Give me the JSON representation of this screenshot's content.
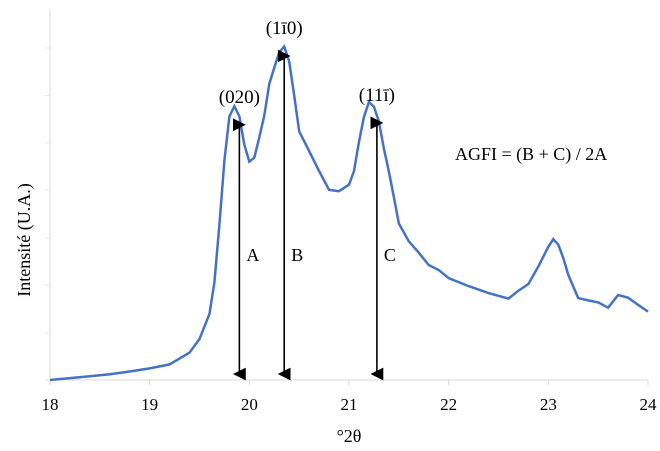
{
  "chart_data": {
    "type": "line",
    "title": "",
    "xlabel": "°2θ",
    "ylabel": "Intensité (U.A.)",
    "xlim": [
      18,
      24
    ],
    "x_ticks": [
      "18",
      "19",
      "20",
      "21",
      "22",
      "23",
      "24"
    ],
    "grid": false,
    "line_color": "#4472C4",
    "series": [
      {
        "x": [
          18.0,
          18.2,
          18.4,
          18.6,
          18.8,
          19.0,
          19.2,
          19.4,
          19.5,
          19.6,
          19.65,
          19.7,
          19.75,
          19.8,
          19.85,
          19.9,
          19.95,
          20.0,
          20.05,
          20.1,
          20.15,
          20.2,
          20.25,
          20.3,
          20.35,
          20.4,
          20.45,
          20.5,
          20.6,
          20.7,
          20.8,
          20.9,
          21.0,
          21.05,
          21.1,
          21.15,
          21.2,
          21.25,
          21.3,
          21.35,
          21.4,
          21.45,
          21.5,
          21.6,
          21.7,
          21.8,
          21.9,
          22.0,
          22.2,
          22.4,
          22.6,
          22.7,
          22.8,
          22.9,
          23.0,
          23.05,
          23.1,
          23.15,
          23.2,
          23.3,
          23.4,
          23.5,
          23.6,
          23.7,
          23.8,
          23.9,
          24.0
        ],
        "y": [
          0,
          4,
          8,
          12,
          18,
          24,
          34,
          55,
          85,
          140,
          210,
          330,
          460,
          560,
          580,
          555,
          500,
          460,
          470,
          510,
          560,
          625,
          660,
          690,
          700,
          670,
          600,
          520,
          480,
          440,
          405,
          400,
          410,
          440,
          500,
          555,
          590,
          580,
          545,
          490,
          440,
          390,
          330,
          290,
          270,
          245,
          230,
          215,
          195,
          180,
          170,
          185,
          205,
          240,
          280,
          300,
          285,
          255,
          220,
          170,
          165,
          160,
          155,
          175,
          170,
          155,
          145
        ]
      }
    ],
    "peaks": [
      {
        "label": "(020)",
        "x": 19.9
      },
      {
        "label": "(1ī0)",
        "x": 20.35
      },
      {
        "label": "(11ī)",
        "x": 21.28
      }
    ],
    "arrows": [
      {
        "label": "A",
        "x": 19.9
      },
      {
        "label": "B",
        "x": 20.35
      },
      {
        "label": "C",
        "x": 21.28
      }
    ],
    "formula": "AGFI = (B + C) / 2A"
  }
}
